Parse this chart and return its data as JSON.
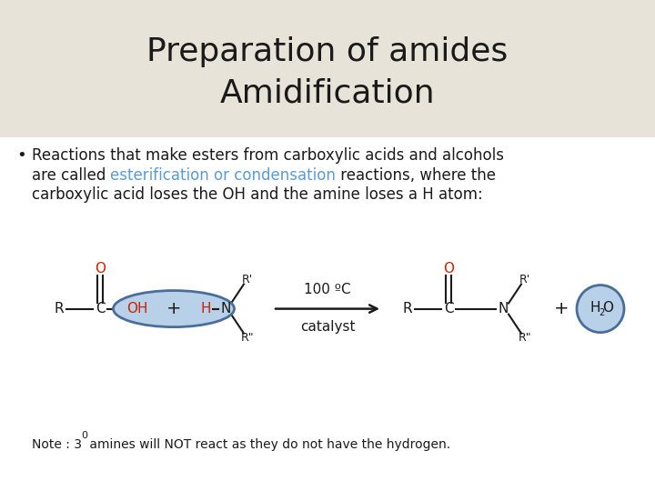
{
  "title_line1": "Preparation of amides",
  "title_line2": "Amidification",
  "title_bg_color": "#e8e3d8",
  "title_fontsize": 26,
  "bullet_text_line1": "Reactions that make esters from carboxylic acids and alcohols",
  "bullet_text_line2_before": "are called ",
  "bullet_text_line2_blue": "esterification or condensation",
  "bullet_text_line2_after": " reactions, where the",
  "bullet_text_line3": "carboxylic acid loses the OH and the amine loses a H atom:",
  "bullet_color": "#1a1a1a",
  "blue_text_color": "#5b9bd5",
  "note_text": "Note : 3",
  "note_sup": "0",
  "note_text2": " amines will NOT react as they do not have the hydrogen.",
  "bg_color": "#ffffff",
  "red_color": "#cc2200",
  "dark_color": "#1a1a1a",
  "oval_fill": "#b8d0e8",
  "oval_edge": "#4a6e9a",
  "circle_fill": "#b8d0e8",
  "circle_edge": "#4a6e9a",
  "text_fontsize": 12,
  "chem_fontsize": 11,
  "note_fontsize": 10
}
